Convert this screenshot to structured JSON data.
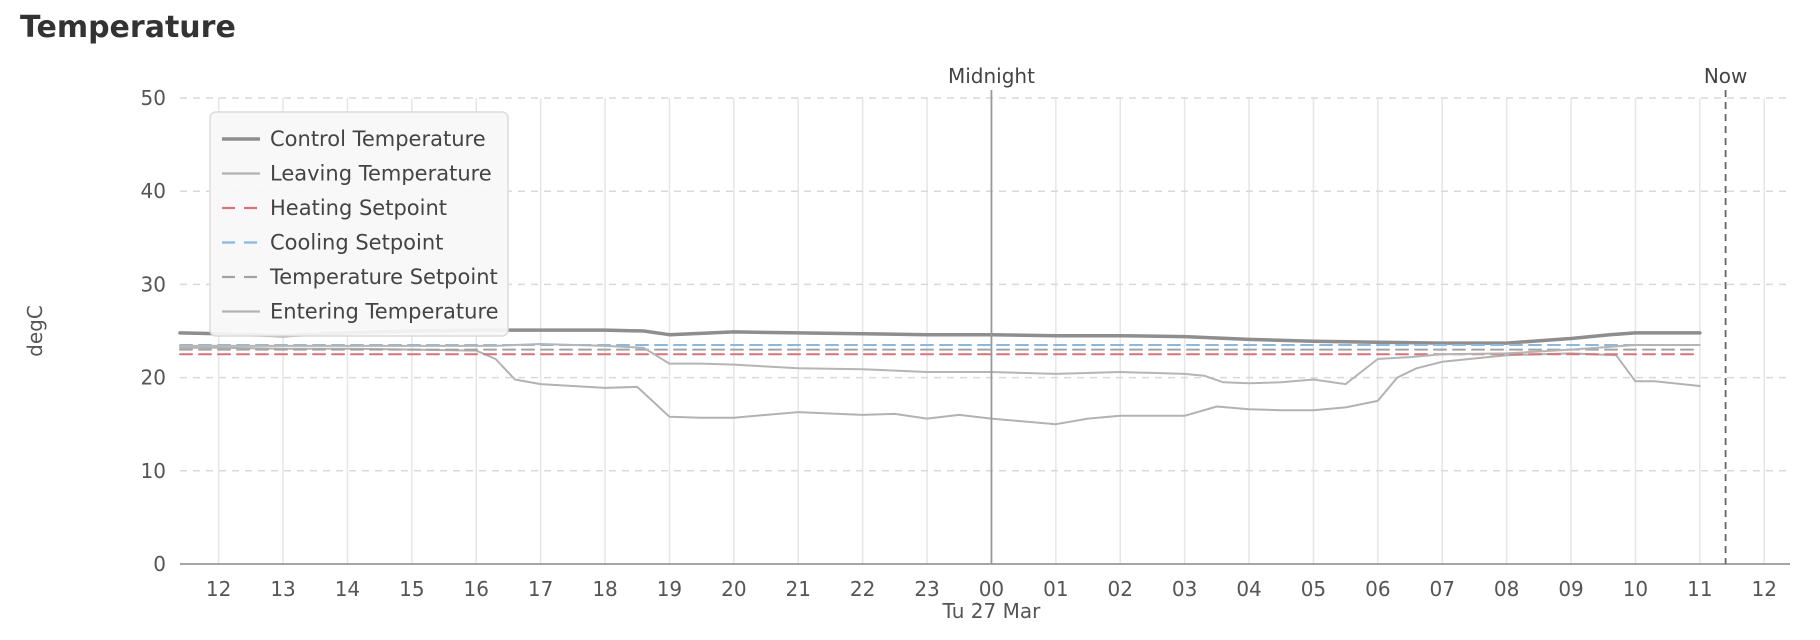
{
  "chart_data": {
    "type": "line",
    "title": "Temperature",
    "ylabel": "degC",
    "xlabel_date": "Tu 27 Mar",
    "ylim": [
      0,
      50
    ],
    "yticks": [
      0,
      10,
      20,
      30,
      40,
      50
    ],
    "xlim": [
      11.4,
      36.4
    ],
    "xticks": [
      {
        "v": 12,
        "label": "12"
      },
      {
        "v": 13,
        "label": "13"
      },
      {
        "v": 14,
        "label": "14"
      },
      {
        "v": 15,
        "label": "15"
      },
      {
        "v": 16,
        "label": "16"
      },
      {
        "v": 17,
        "label": "17"
      },
      {
        "v": 18,
        "label": "18"
      },
      {
        "v": 19,
        "label": "19"
      },
      {
        "v": 20,
        "label": "20"
      },
      {
        "v": 21,
        "label": "21"
      },
      {
        "v": 22,
        "label": "22"
      },
      {
        "v": 23,
        "label": "23"
      },
      {
        "v": 24,
        "label": "00"
      },
      {
        "v": 25,
        "label": "01"
      },
      {
        "v": 26,
        "label": "02"
      },
      {
        "v": 27,
        "label": "03"
      },
      {
        "v": 28,
        "label": "04"
      },
      {
        "v": 29,
        "label": "05"
      },
      {
        "v": 30,
        "label": "06"
      },
      {
        "v": 31,
        "label": "07"
      },
      {
        "v": 32,
        "label": "08"
      },
      {
        "v": 33,
        "label": "09"
      },
      {
        "v": 34,
        "label": "10"
      },
      {
        "v": 35,
        "label": "11"
      },
      {
        "v": 36,
        "label": "12"
      }
    ],
    "grid": true,
    "legend_position": "top-left",
    "markers": [
      {
        "label": "Midnight",
        "x": 24,
        "style": "solid",
        "color": "#999999"
      },
      {
        "label": "Now",
        "x": 35.4,
        "style": "dashed",
        "color": "#666666"
      }
    ],
    "series": [
      {
        "name": "Control Temperature",
        "color": "#8e8e8e",
        "dash": "solid",
        "width": 3.5,
        "x": [
          11.4,
          12,
          13,
          14,
          15,
          16,
          17,
          18,
          18.6,
          19,
          20,
          21,
          22,
          23,
          24,
          25,
          26,
          27,
          28,
          29,
          30,
          31,
          32,
          33,
          33.6,
          34,
          35
        ],
        "y": [
          24.8,
          24.7,
          24.5,
          24.8,
          25.0,
          25.1,
          25.1,
          25.1,
          25.0,
          24.6,
          24.9,
          24.8,
          24.7,
          24.6,
          24.6,
          24.5,
          24.5,
          24.4,
          24.1,
          23.9,
          23.8,
          23.7,
          23.7,
          24.2,
          24.6,
          24.8,
          24.8
        ]
      },
      {
        "name": "Leaving Temperature",
        "color": "#b2b2b2",
        "dash": "solid",
        "width": 2,
        "x": [
          11.4,
          12,
          13,
          14,
          15,
          16,
          16.3,
          16.6,
          17,
          18,
          18.5,
          19,
          19.5,
          20,
          21,
          22,
          22.5,
          23,
          23.5,
          24,
          25,
          25.5,
          26,
          27,
          27.5,
          28,
          28.5,
          29,
          29.5,
          30,
          30.3,
          30.6,
          31,
          32,
          33,
          33.7,
          34,
          34.3,
          35
        ],
        "y": [
          23.2,
          23.2,
          23.1,
          23.1,
          23.0,
          22.9,
          22.0,
          19.8,
          19.3,
          18.9,
          19.0,
          15.8,
          15.7,
          15.7,
          16.3,
          16.0,
          16.1,
          15.6,
          16.0,
          15.6,
          15.0,
          15.6,
          15.9,
          15.9,
          16.9,
          16.6,
          16.5,
          16.5,
          16.8,
          17.5,
          20.0,
          21.0,
          21.7,
          22.4,
          22.6,
          22.4,
          19.6,
          19.6,
          19.1
        ]
      },
      {
        "name": "Heating Setpoint",
        "color": "#d9737b",
        "dash": "dashed",
        "width": 2,
        "x": [
          11.4,
          35
        ],
        "y": [
          22.5,
          22.5
        ]
      },
      {
        "name": "Cooling Setpoint",
        "color": "#8bb8dd",
        "dash": "dashed",
        "width": 2,
        "x": [
          11.4,
          35
        ],
        "y": [
          23.5,
          23.5
        ]
      },
      {
        "name": "Temperature Setpoint",
        "color": "#a3a3a3",
        "dash": "dashed",
        "width": 2,
        "x": [
          11.4,
          35
        ],
        "y": [
          23.0,
          23.0
        ]
      },
      {
        "name": "Entering Temperature",
        "color": "#b5b5b5",
        "dash": "solid",
        "width": 2,
        "x": [
          11.4,
          12,
          13,
          14,
          15,
          16,
          16.3,
          16.6,
          17,
          18,
          18.6,
          19,
          19.5,
          20,
          21,
          22,
          23,
          24,
          25,
          26,
          27,
          27.3,
          27.6,
          28,
          28.5,
          29,
          29.5,
          30,
          30.5,
          31,
          32,
          33,
          34,
          35
        ],
        "y": [
          23.4,
          23.4,
          23.4,
          23.4,
          23.4,
          23.4,
          23.4,
          23.5,
          23.6,
          23.4,
          23.2,
          21.5,
          21.5,
          21.4,
          21.0,
          20.9,
          20.6,
          20.6,
          20.4,
          20.6,
          20.4,
          20.2,
          19.5,
          19.4,
          19.5,
          19.8,
          19.3,
          22.0,
          22.2,
          22.5,
          22.6,
          23.0,
          23.5,
          23.5
        ]
      }
    ]
  }
}
